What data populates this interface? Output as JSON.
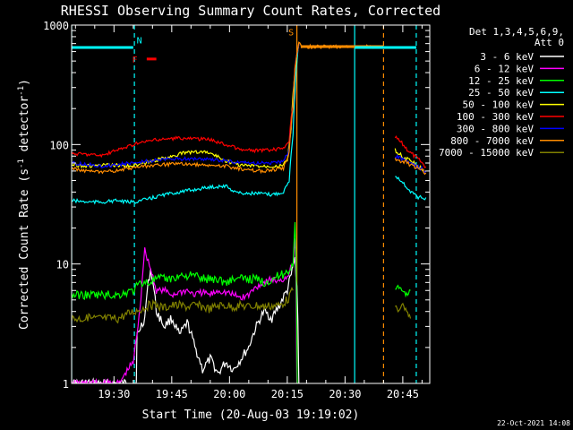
{
  "chart_data": {
    "type": "line",
    "title": "RHESSI Observing Summary Count Rates, Corrected",
    "xlabel": "Start Time (20-Aug-03 19:19:02)",
    "ylabel": "Corrected Count Rate (s",
    "ylabel_sup1": "-1",
    "ylabel_mid": " detector",
    "ylabel_sup2": "-1",
    "ylabel_end": ")",
    "x_unit": "minutes after 19:19:02 UT",
    "xlim": [
      0,
      93
    ],
    "ylim": [
      1,
      1000
    ],
    "yscale": "log",
    "x_ticks": [
      {
        "at": 11,
        "label": "19:30"
      },
      {
        "at": 26,
        "label": "19:45"
      },
      {
        "at": 41,
        "label": "20:00"
      },
      {
        "at": 56,
        "label": "20:15"
      },
      {
        "at": 71,
        "label": "20:30"
      },
      {
        "at": 86,
        "label": "20:45"
      }
    ],
    "y_ticks": [
      {
        "at": 1,
        "label": "1"
      },
      {
        "at": 10,
        "label": "10"
      },
      {
        "at": 100,
        "label": "100"
      },
      {
        "at": 1000,
        "label": "1000"
      }
    ],
    "legend_header": [
      "Det 1,3,4,5,6,9,",
      "Att 0"
    ],
    "legend_position": "right",
    "series": [
      {
        "name": "3 - 6 keV",
        "color": "#ffffff",
        "points": [
          [
            0,
            1
          ],
          [
            16.8,
            1
          ],
          [
            17,
            2.5
          ],
          [
            19,
            3.5
          ],
          [
            20.5,
            9
          ],
          [
            22,
            4
          ],
          [
            24,
            3
          ],
          [
            26,
            3.5
          ],
          [
            28,
            2.5
          ],
          [
            30,
            3.2
          ],
          [
            32,
            2
          ],
          [
            34,
            1.3
          ],
          [
            36,
            1.6
          ],
          [
            38,
            1.2
          ],
          [
            40,
            1.5
          ],
          [
            42,
            1.3
          ],
          [
            44,
            1.6
          ],
          [
            46,
            2
          ],
          [
            48,
            3
          ],
          [
            50,
            4
          ],
          [
            52,
            3.5
          ],
          [
            54,
            4.5
          ],
          [
            56,
            6
          ],
          [
            57,
            8
          ],
          [
            58,
            11
          ],
          [
            59,
            1
          ]
        ]
      },
      {
        "name": "6 - 12 keV",
        "color": "#ff00ff",
        "points": [
          [
            0,
            1
          ],
          [
            12.5,
            1
          ],
          [
            16,
            1.5
          ],
          [
            17,
            2.5
          ],
          [
            18,
            5
          ],
          [
            19,
            13
          ],
          [
            20.5,
            9
          ],
          [
            22,
            6
          ],
          [
            24,
            6
          ],
          [
            26,
            5.5
          ],
          [
            28,
            5.8
          ],
          [
            30,
            6
          ],
          [
            32,
            5.5
          ],
          [
            34,
            5.8
          ],
          [
            36,
            5.5
          ],
          [
            38,
            6
          ],
          [
            40,
            5.8
          ],
          [
            42,
            5.5
          ],
          [
            44,
            5.2
          ],
          [
            46,
            5.5
          ],
          [
            48,
            6.5
          ],
          [
            50,
            7
          ],
          [
            52,
            7.5
          ],
          [
            54,
            7
          ],
          [
            56,
            8
          ],
          [
            57.5,
            10
          ],
          [
            58,
            17
          ],
          [
            58.5,
            1
          ]
        ]
      },
      {
        "name": "12 - 25 keV",
        "color": "#00ff00",
        "points": [
          [
            0,
            5.5
          ],
          [
            12,
            5.5
          ],
          [
            16,
            6
          ],
          [
            18,
            7
          ],
          [
            20,
            7
          ],
          [
            22,
            7.5
          ],
          [
            24,
            7.5
          ],
          [
            26,
            7.5
          ],
          [
            28,
            8
          ],
          [
            30,
            8
          ],
          [
            32,
            8
          ],
          [
            34,
            7.5
          ],
          [
            36,
            7.5
          ],
          [
            38,
            7.5
          ],
          [
            40,
            7
          ],
          [
            42,
            7.5
          ],
          [
            44,
            7.5
          ],
          [
            46,
            7.5
          ],
          [
            48,
            7.5
          ],
          [
            50,
            7
          ],
          [
            52,
            7.5
          ],
          [
            54,
            8
          ],
          [
            56,
            8.5
          ],
          [
            57.5,
            10
          ],
          [
            58,
            22
          ],
          [
            58.6,
            1
          ]
        ]
      },
      {
        "name": "25 - 50 keV",
        "color": "#00ffff",
        "points": [
          [
            0,
            34
          ],
          [
            4,
            33
          ],
          [
            8,
            33
          ],
          [
            12,
            34
          ],
          [
            14,
            33
          ],
          [
            16,
            33
          ],
          [
            20,
            35
          ],
          [
            24,
            38
          ],
          [
            28,
            40
          ],
          [
            32,
            42
          ],
          [
            36,
            44
          ],
          [
            40,
            45
          ],
          [
            42,
            41
          ],
          [
            44,
            39
          ],
          [
            48,
            39
          ],
          [
            52,
            38
          ],
          [
            55,
            40
          ],
          [
            56.5,
            50
          ],
          [
            57.5,
            120
          ],
          [
            58,
            280
          ],
          [
            59,
            700
          ]
        ]
      },
      {
        "name": "50 - 100 keV",
        "color": "#ffff00",
        "points": [
          [
            0,
            68
          ],
          [
            4,
            66
          ],
          [
            8,
            67
          ],
          [
            12,
            67
          ],
          [
            14,
            66
          ],
          [
            18,
            68
          ],
          [
            22,
            74
          ],
          [
            26,
            80
          ],
          [
            30,
            86
          ],
          [
            34,
            87
          ],
          [
            36,
            85
          ],
          [
            40,
            73
          ],
          [
            44,
            67
          ],
          [
            50,
            66
          ],
          [
            55,
            67
          ],
          [
            56,
            75
          ],
          [
            57,
            130
          ],
          [
            58,
            400
          ],
          [
            59,
            700
          ]
        ]
      },
      {
        "name": "100 - 300 keV",
        "color": "#ff0000",
        "points": [
          [
            0,
            84
          ],
          [
            4,
            83
          ],
          [
            8,
            81
          ],
          [
            12,
            90
          ],
          [
            16,
            100
          ],
          [
            20,
            107
          ],
          [
            24,
            111
          ],
          [
            28,
            113
          ],
          [
            32,
            112
          ],
          [
            36,
            110
          ],
          [
            40,
            100
          ],
          [
            44,
            90
          ],
          [
            50,
            89
          ],
          [
            55,
            92
          ],
          [
            56.5,
            110
          ],
          [
            57.5,
            220
          ],
          [
            58,
            450
          ],
          [
            59,
            700
          ]
        ]
      },
      {
        "name": "300 - 800 keV",
        "color": "#0000ff",
        "points": [
          [
            0,
            70
          ],
          [
            4,
            68
          ],
          [
            8,
            66
          ],
          [
            12,
            68
          ],
          [
            16,
            70
          ],
          [
            20,
            73
          ],
          [
            24,
            75
          ],
          [
            28,
            76
          ],
          [
            32,
            76
          ],
          [
            36,
            75
          ],
          [
            40,
            73
          ],
          [
            44,
            70
          ],
          [
            50,
            70
          ],
          [
            55,
            71
          ],
          [
            56.5,
            90
          ],
          [
            57.5,
            200
          ],
          [
            58,
            420
          ],
          [
            59,
            700
          ]
        ]
      },
      {
        "name": "800 - 7000 keV",
        "color": "#ff8c00",
        "points": [
          [
            0,
            63
          ],
          [
            4,
            60
          ],
          [
            8,
            58
          ],
          [
            12,
            61
          ],
          [
            16,
            64
          ],
          [
            20,
            66
          ],
          [
            24,
            68
          ],
          [
            28,
            69
          ],
          [
            32,
            68
          ],
          [
            36,
            67
          ],
          [
            40,
            66
          ],
          [
            44,
            62
          ],
          [
            50,
            60
          ],
          [
            55,
            63
          ],
          [
            56.5,
            85
          ],
          [
            57.5,
            200
          ],
          [
            58,
            420
          ],
          [
            59,
            700
          ],
          [
            60,
            660
          ],
          [
            80,
            660
          ],
          [
            81,
            660
          ]
        ]
      },
      {
        "name": "7000 - 15000 keV",
        "color": "#808000",
        "points": [
          [
            0,
            3.5
          ],
          [
            12,
            3.5
          ],
          [
            16,
            4
          ],
          [
            18,
            4.2
          ],
          [
            20,
            4.5
          ],
          [
            22,
            4.5
          ],
          [
            24,
            4.3
          ],
          [
            26,
            4.5
          ],
          [
            28,
            4.5
          ],
          [
            30,
            4.4
          ],
          [
            32,
            4.5
          ],
          [
            34,
            4.4
          ],
          [
            36,
            4.2
          ],
          [
            38,
            4.5
          ],
          [
            40,
            4.5
          ],
          [
            42,
            4.4
          ],
          [
            44,
            4.5
          ],
          [
            46,
            4.4
          ],
          [
            48,
            4.5
          ],
          [
            50,
            4.4
          ],
          [
            52,
            4.5
          ],
          [
            54,
            4.5
          ],
          [
            56,
            5
          ],
          [
            57.5,
            6
          ]
        ]
      }
    ],
    "post_gap_series": [
      {
        "color": "#ff0000",
        "points": [
          [
            84,
            115
          ],
          [
            86,
            100
          ],
          [
            88,
            85
          ],
          [
            90,
            75
          ],
          [
            92,
            65
          ]
        ]
      },
      {
        "color": "#ffff00",
        "points": [
          [
            84,
            90
          ],
          [
            86,
            80
          ],
          [
            88,
            72
          ],
          [
            90,
            66
          ],
          [
            92,
            60
          ]
        ]
      },
      {
        "color": "#0000ff",
        "points": [
          [
            84,
            80
          ],
          [
            86,
            75
          ],
          [
            88,
            70
          ],
          [
            90,
            64
          ],
          [
            92,
            60
          ]
        ]
      },
      {
        "color": "#ff8c00",
        "points": [
          [
            84,
            75
          ],
          [
            86,
            72
          ],
          [
            88,
            68
          ],
          [
            90,
            63
          ],
          [
            92,
            58
          ]
        ]
      },
      {
        "color": "#00ffff",
        "points": [
          [
            84,
            55
          ],
          [
            86,
            48
          ],
          [
            88,
            40
          ],
          [
            90,
            36
          ],
          [
            92,
            36
          ]
        ]
      },
      {
        "color": "#00ff00",
        "points": [
          [
            84,
            6
          ],
          [
            85,
            6.5
          ],
          [
            86,
            6
          ],
          [
            87,
            5.5
          ],
          [
            88,
            6
          ]
        ]
      },
      {
        "color": "#808000",
        "points": [
          [
            84,
            4.5
          ],
          [
            85,
            4
          ],
          [
            86,
            4.5
          ],
          [
            87,
            4
          ],
          [
            88,
            3.5
          ]
        ]
      }
    ],
    "flag_bars": [
      {
        "color": "#00ffff",
        "y": 650,
        "x_start": 0,
        "x_end": 16
      },
      {
        "color": "#ff8c00",
        "y": 660,
        "x_start": 59.5,
        "x_end": 81
      },
      {
        "color": "#00ffff",
        "y": 650,
        "x_start": 73.5,
        "x_end": 89.5
      },
      {
        "color": "#ff0000",
        "y": 520,
        "x_start": 19.5,
        "x_end": 22
      }
    ],
    "markers": [
      {
        "x": 0,
        "color": "#00ffff",
        "style": "solid"
      },
      {
        "x": 16.3,
        "color": "#00ffff",
        "style": "dashed"
      },
      {
        "x": 58.5,
        "color": "#ff8c00",
        "style": "solid"
      },
      {
        "x": 73.5,
        "color": "#00ffff",
        "style": "solid"
      },
      {
        "x": 81,
        "color": "#ff8c00",
        "style": "dashed"
      },
      {
        "x": 89.5,
        "color": "#00ffff",
        "style": "dashed"
      }
    ],
    "annotations": [
      {
        "text": "N",
        "x": 17.6,
        "y": 750,
        "color": "#00ffff"
      },
      {
        "text": "F",
        "x": 16.4,
        "y": 520,
        "color": "#ff0000"
      },
      {
        "text": "S",
        "x": 57,
        "y": 880,
        "color": "#ff8c00"
      }
    ]
  },
  "footer_date": "22-Oct-2021 14:08"
}
